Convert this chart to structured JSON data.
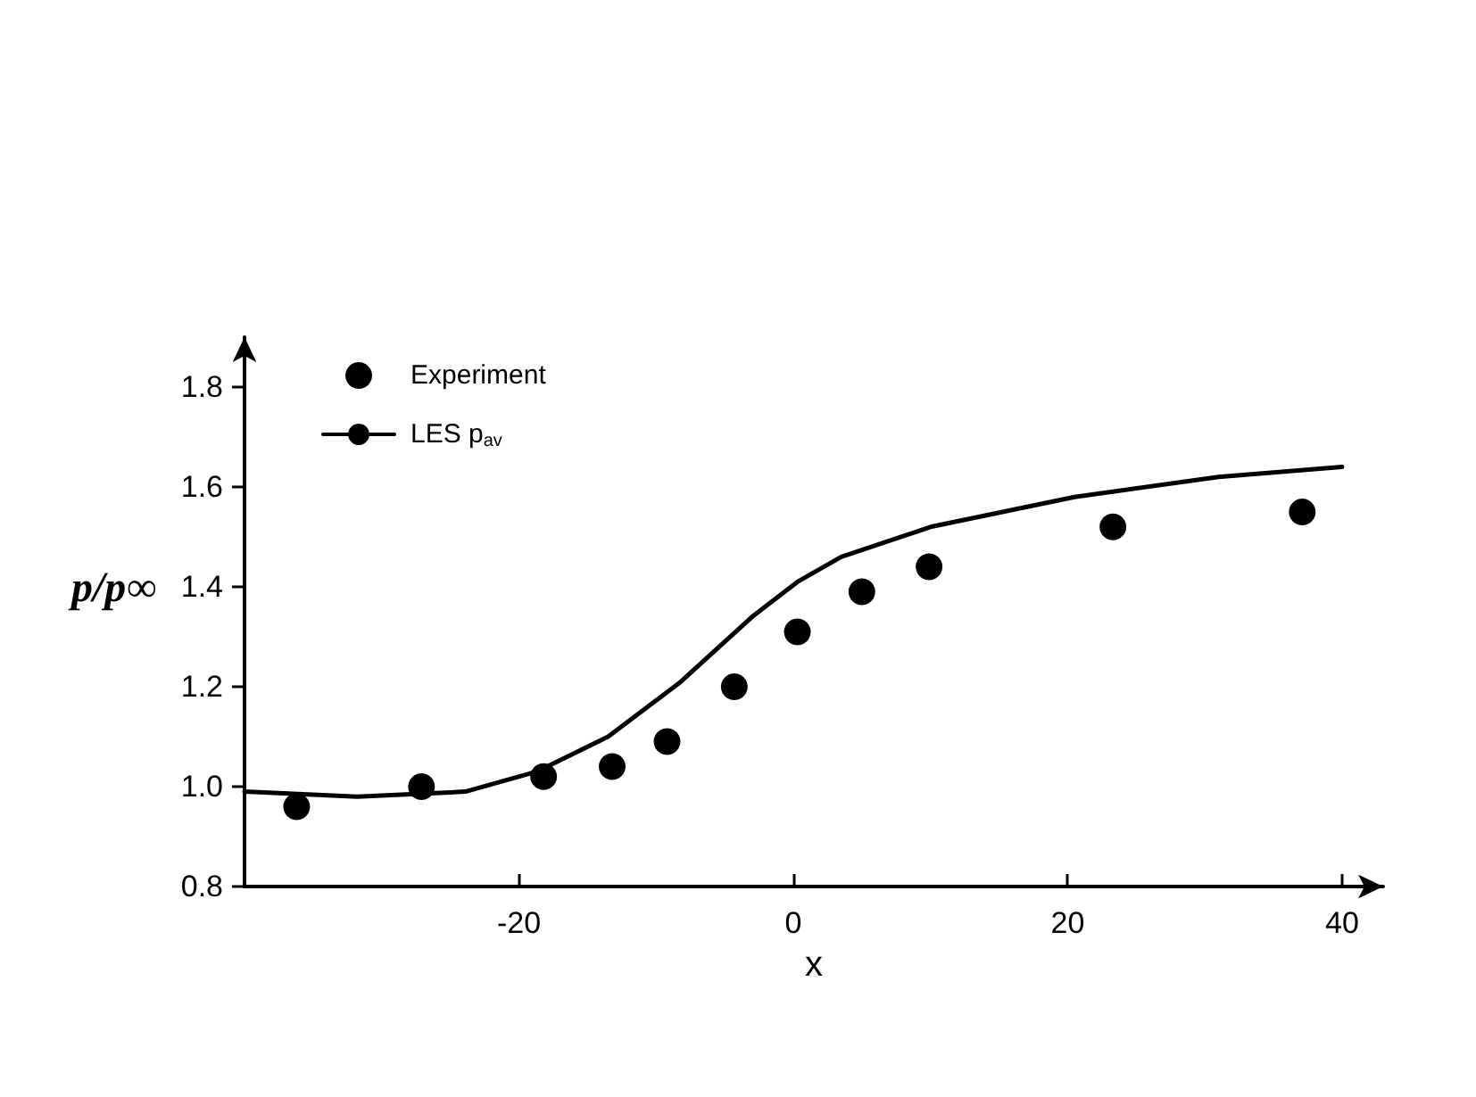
{
  "chart_data": {
    "type": "scatter",
    "xlabel": "x",
    "ylabel": "p/p∞",
    "xlim": [
      -40,
      43
    ],
    "ylim": [
      0.8,
      1.9
    ],
    "xticks": [
      -20,
      0,
      20,
      40
    ],
    "yticks": [
      {
        "value": 0.8,
        "label": "0.8"
      },
      {
        "value": 1,
        "label": "1.0"
      },
      {
        "value": 1.2,
        "label": "1.2"
      },
      {
        "value": 1.4,
        "label": "1.4"
      },
      {
        "value": 1.6,
        "label": "1.6"
      },
      {
        "value": 1.8,
        "label": "1.8"
      }
    ],
    "grid": false,
    "legend": "top left",
    "series": [
      {
        "name": "Experiment",
        "marker": "circle",
        "color": "#000000",
        "x": [
          -36.2,
          -27.1,
          -18.2,
          -13.2,
          -9.2,
          -4.3,
          0.3,
          5.0,
          9.9,
          23.3,
          37.1
        ],
        "values": [
          0.96,
          1.0,
          1.02,
          1.04,
          1.09,
          1.2,
          1.31,
          1.39,
          1.44,
          1.52,
          1.55
        ]
      },
      {
        "name": "LES p$_{av}$",
        "type": "line",
        "marker": "none",
        "line_style": "solid",
        "color": "#000000",
        "x": [
          -40,
          -31.8,
          -23.9,
          -18.7,
          -13.5,
          -8.2,
          -3.0,
          0.3,
          3.5,
          10,
          20.5,
          31,
          40
        ],
        "values": [
          0.99,
          0.98,
          0.99,
          1.03,
          1.1,
          1.21,
          1.34,
          1.41,
          1.46,
          1.52,
          1.58,
          1.62,
          1.64
        ]
      }
    ]
  }
}
